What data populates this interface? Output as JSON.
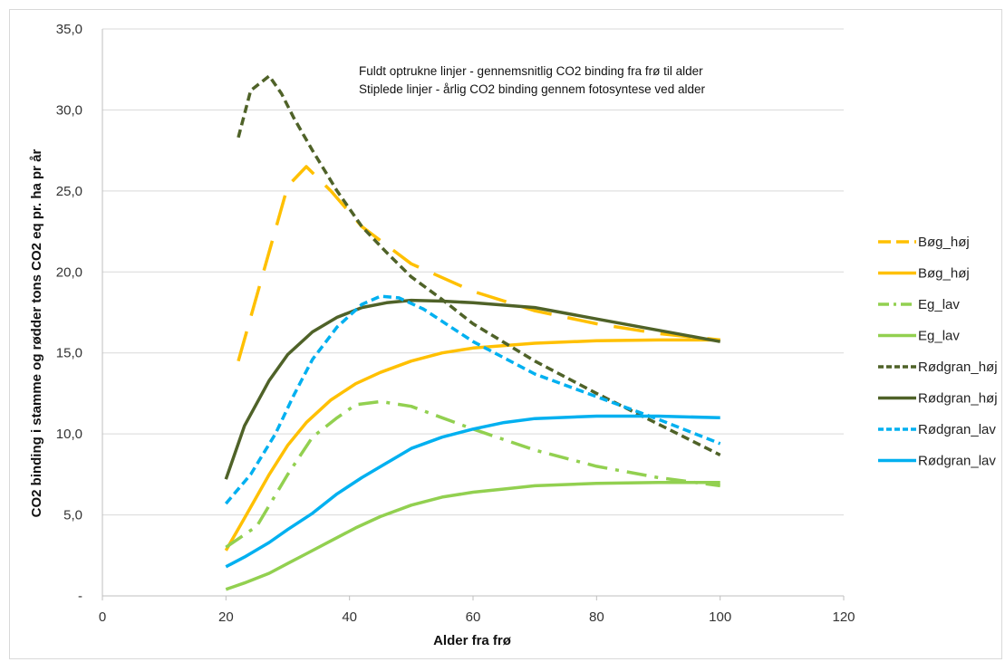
{
  "chart_data": {
    "type": "line",
    "title": "",
    "xlabel": "Alder fra frø",
    "ylabel": "CO2 binding i stamme og rødder  tons CO2 eq pr. ha pr år",
    "xlim": [
      0,
      120
    ],
    "ylim": [
      0,
      35
    ],
    "x_ticks": [
      "0",
      "20",
      "40",
      "60",
      "80",
      "100",
      "120"
    ],
    "y_ticks": [
      "-",
      "5,0",
      "10,0",
      "15,0",
      "20,0",
      "25,0",
      "30,0",
      "35,0"
    ],
    "grid": "horizontal",
    "legend_position": "right",
    "annotations": [
      "Fuldt optrukne linjer - gennemsnitlig CO2 binding  fra frø til alder",
      "Stiplede linjer - årlig CO2 binding  gennem fotosyntese ved alder"
    ],
    "series": [
      {
        "name": "Bøg_høj",
        "color": "#FFC000",
        "style": "longdash",
        "points": [
          [
            22,
            14.5
          ],
          [
            30,
            25.3
          ],
          [
            33,
            26.5
          ],
          [
            37,
            25.0
          ],
          [
            42,
            22.8
          ],
          [
            50,
            20.5
          ],
          [
            60,
            18.8
          ],
          [
            70,
            17.6
          ],
          [
            80,
            16.8
          ],
          [
            90,
            16.2
          ],
          [
            100,
            15.8
          ]
        ]
      },
      {
        "name": "Bøg_høj",
        "color": "#FFC000",
        "style": "solid",
        "points": [
          [
            20,
            2.8
          ],
          [
            23,
            4.8
          ],
          [
            27,
            7.5
          ],
          [
            30,
            9.3
          ],
          [
            33,
            10.7
          ],
          [
            37,
            12.1
          ],
          [
            41,
            13.1
          ],
          [
            45,
            13.8
          ],
          [
            50,
            14.5
          ],
          [
            55,
            15.0
          ],
          [
            60,
            15.3
          ],
          [
            70,
            15.6
          ],
          [
            80,
            15.75
          ],
          [
            90,
            15.8
          ],
          [
            100,
            15.8
          ]
        ]
      },
      {
        "name": "Eg_lav",
        "color": "#92D050",
        "style": "dashdot",
        "points": [
          [
            20,
            3.0
          ],
          [
            25,
            4.3
          ],
          [
            30,
            7.5
          ],
          [
            34,
            9.8
          ],
          [
            38,
            11.0
          ],
          [
            41,
            11.8
          ],
          [
            45,
            12.0
          ],
          [
            50,
            11.7
          ],
          [
            55,
            11.0
          ],
          [
            60,
            10.3
          ],
          [
            70,
            9.0
          ],
          [
            80,
            8.0
          ],
          [
            90,
            7.3
          ],
          [
            100,
            6.8
          ]
        ]
      },
      {
        "name": "Eg_lav",
        "color": "#92D050",
        "style": "solid",
        "points": [
          [
            20,
            0.4
          ],
          [
            23,
            0.8
          ],
          [
            27,
            1.4
          ],
          [
            30,
            2.0
          ],
          [
            33,
            2.6
          ],
          [
            37,
            3.4
          ],
          [
            41,
            4.2
          ],
          [
            45,
            4.9
          ],
          [
            50,
            5.6
          ],
          [
            55,
            6.1
          ],
          [
            60,
            6.4
          ],
          [
            65,
            6.6
          ],
          [
            70,
            6.8
          ],
          [
            80,
            6.95
          ],
          [
            90,
            7.0
          ],
          [
            100,
            7.0
          ]
        ]
      },
      {
        "name": "Rødgran_høj",
        "color": "#4F6228",
        "style": "dash",
        "points": [
          [
            22,
            28.3
          ],
          [
            24,
            31.2
          ],
          [
            27,
            32.1
          ],
          [
            29,
            31.0
          ],
          [
            31,
            29.5
          ],
          [
            34,
            27.5
          ],
          [
            38,
            25.0
          ],
          [
            42,
            22.8
          ],
          [
            46,
            21.2
          ],
          [
            50,
            19.7
          ],
          [
            55,
            18.3
          ],
          [
            60,
            16.8
          ],
          [
            70,
            14.5
          ],
          [
            80,
            12.5
          ],
          [
            90,
            10.6
          ],
          [
            100,
            8.7
          ]
        ]
      },
      {
        "name": "Rødgran_høj",
        "color": "#4F6228",
        "style": "solid",
        "points": [
          [
            20,
            7.2
          ],
          [
            23,
            10.5
          ],
          [
            27,
            13.3
          ],
          [
            30,
            14.9
          ],
          [
            34,
            16.3
          ],
          [
            38,
            17.2
          ],
          [
            42,
            17.8
          ],
          [
            46,
            18.1
          ],
          [
            50,
            18.25
          ],
          [
            55,
            18.2
          ],
          [
            60,
            18.1
          ],
          [
            70,
            17.8
          ],
          [
            80,
            17.1
          ],
          [
            90,
            16.4
          ],
          [
            100,
            15.7
          ]
        ]
      },
      {
        "name": "Rødgran_lav",
        "color": "#00B0F0",
        "style": "dash",
        "points": [
          [
            20,
            5.7
          ],
          [
            24,
            7.5
          ],
          [
            28,
            10.0
          ],
          [
            31,
            12.4
          ],
          [
            34,
            14.6
          ],
          [
            38,
            16.6
          ],
          [
            42,
            18.0
          ],
          [
            45,
            18.5
          ],
          [
            48,
            18.4
          ],
          [
            52,
            17.7
          ],
          [
            56,
            16.7
          ],
          [
            60,
            15.7
          ],
          [
            70,
            13.7
          ],
          [
            80,
            12.3
          ],
          [
            90,
            10.9
          ],
          [
            100,
            9.4
          ]
        ]
      },
      {
        "name": "Rødgran_lav",
        "color": "#00B0F0",
        "style": "solid",
        "points": [
          [
            20,
            1.8
          ],
          [
            23,
            2.4
          ],
          [
            27,
            3.3
          ],
          [
            30,
            4.1
          ],
          [
            34,
            5.1
          ],
          [
            38,
            6.3
          ],
          [
            42,
            7.3
          ],
          [
            46,
            8.2
          ],
          [
            50,
            9.1
          ],
          [
            55,
            9.8
          ],
          [
            60,
            10.3
          ],
          [
            65,
            10.7
          ],
          [
            70,
            10.95
          ],
          [
            80,
            11.1
          ],
          [
            90,
            11.1
          ],
          [
            100,
            11.0
          ]
        ]
      }
    ]
  }
}
